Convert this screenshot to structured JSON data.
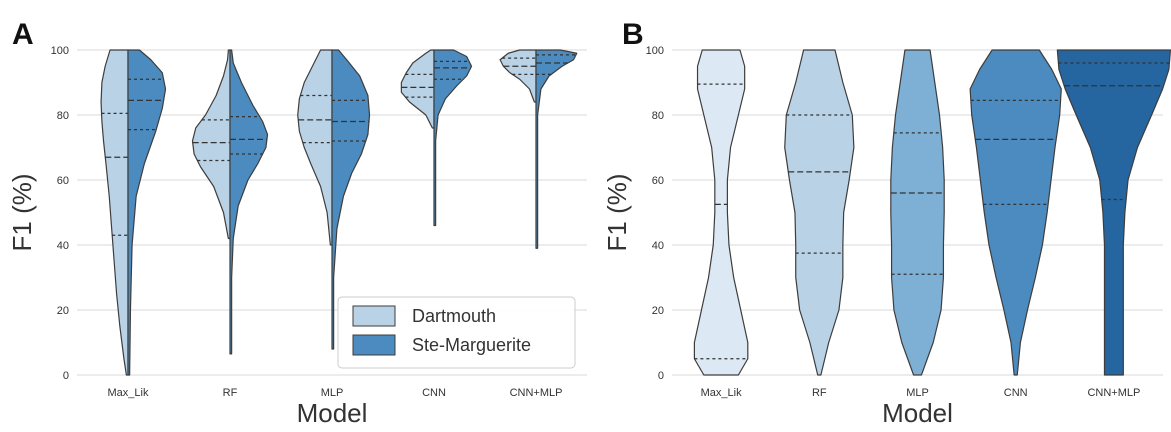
{
  "chart_data": [
    {
      "panel_label": "A",
      "type": "violin",
      "split": true,
      "categories": [
        "Max_Lik",
        "RF",
        "MLP",
        "CNN",
        "CNN+MLP"
      ],
      "xlabel": "Model",
      "ylabel": "F1 (%)",
      "ylim": [
        0,
        100
      ],
      "yticks": [
        0,
        20,
        40,
        60,
        80,
        100
      ],
      "grid": true,
      "legend": {
        "placement": "bottom-right",
        "entries": [
          "Dartmouth",
          "Ste-Marguerite"
        ]
      },
      "colors": {
        "Dartmouth": "#b9d2e6",
        "Ste-Marguerite": "#4b8bbf",
        "outline": "#3d3d3d",
        "grid": "#d9d9d9"
      },
      "series": [
        {
          "name": "Dartmouth",
          "side": "left",
          "violins": [
            {
              "category": "Max_Lik",
              "min": 0,
              "max": 100,
              "quartiles": [
                43,
                67,
                80.5
              ],
              "profile": [
                [
                  0,
                  0.02
                ],
                [
                  5,
                  0.05
                ],
                [
                  15,
                  0.1
                ],
                [
                  25,
                  0.14
                ],
                [
                  35,
                  0.17
                ],
                [
                  45,
                  0.2
                ],
                [
                  55,
                  0.23
                ],
                [
                  65,
                  0.27
                ],
                [
                  72,
                  0.3
                ],
                [
                  78,
                  0.32
                ],
                [
                  84,
                  0.33
                ],
                [
                  90,
                  0.32
                ],
                [
                  95,
                  0.28
                ],
                [
                  100,
                  0.22
                ]
              ]
            },
            {
              "category": "RF",
              "min": 42,
              "max": 100,
              "quartiles": [
                66,
                71.5,
                78.5
              ],
              "profile": [
                [
                  42,
                  0.02
                ],
                [
                  50,
                  0.08
                ],
                [
                  58,
                  0.2
                ],
                [
                  64,
                  0.36
                ],
                [
                  68,
                  0.44
                ],
                [
                  72,
                  0.46
                ],
                [
                  76,
                  0.42
                ],
                [
                  80,
                  0.3
                ],
                [
                  86,
                  0.17
                ],
                [
                  92,
                  0.08
                ],
                [
                  97,
                  0.03
                ],
                [
                  100,
                  0.02
                ]
              ]
            },
            {
              "category": "MLP",
              "min": 40,
              "max": 100,
              "quartiles": [
                71.5,
                78.5,
                86
              ],
              "profile": [
                [
                  40,
                  0.02
                ],
                [
                  50,
                  0.06
                ],
                [
                  58,
                  0.14
                ],
                [
                  65,
                  0.26
                ],
                [
                  70,
                  0.34
                ],
                [
                  75,
                  0.4
                ],
                [
                  80,
                  0.42
                ],
                [
                  85,
                  0.4
                ],
                [
                  90,
                  0.34
                ],
                [
                  95,
                  0.24
                ],
                [
                  100,
                  0.14
                ]
              ]
            },
            {
              "category": "CNN",
              "min": 76,
              "max": 100,
              "quartiles": [
                85.5,
                88.5,
                92.5
              ],
              "profile": [
                [
                  76,
                  0.02
                ],
                [
                  80,
                  0.1
                ],
                [
                  84,
                  0.3
                ],
                [
                  87,
                  0.4
                ],
                [
                  90,
                  0.4
                ],
                [
                  93,
                  0.34
                ],
                [
                  96,
                  0.26
                ],
                [
                  99,
                  0.1
                ],
                [
                  100,
                  0.04
                ]
              ]
            },
            {
              "category": "CNN+MLP",
              "min": 84,
              "max": 100,
              "quartiles": [
                92.5,
                95,
                97.5
              ],
              "profile": [
                [
                  84,
                  0.02
                ],
                [
                  88,
                  0.08
                ],
                [
                  91,
                  0.2
                ],
                [
                  93,
                  0.32
                ],
                [
                  95,
                  0.4
                ],
                [
                  97,
                  0.44
                ],
                [
                  99,
                  0.34
                ],
                [
                  100,
                  0.2
                ]
              ]
            }
          ]
        },
        {
          "name": "Ste-Marguerite",
          "side": "right",
          "violins": [
            {
              "category": "Max_Lik",
              "min": 0,
              "max": 100,
              "quartiles": [
                75.5,
                84.5,
                91
              ],
              "profile": [
                [
                  0,
                  0.02
                ],
                [
                  20,
                  0.03
                ],
                [
                  40,
                  0.05
                ],
                [
                  55,
                  0.1
                ],
                [
                  65,
                  0.2
                ],
                [
                  75,
                  0.34
                ],
                [
                  82,
                  0.42
                ],
                [
                  88,
                  0.46
                ],
                [
                  93,
                  0.42
                ],
                [
                  97,
                  0.28
                ],
                [
                  100,
                  0.14
                ]
              ]
            },
            {
              "category": "RF",
              "min": 6.5,
              "max": 100,
              "quartiles": [
                68,
                72.5,
                79.5
              ],
              "profile": [
                [
                  6.5,
                  0.02
                ],
                [
                  30,
                  0.02
                ],
                [
                  42,
                  0.04
                ],
                [
                  52,
                  0.1
                ],
                [
                  60,
                  0.22
                ],
                [
                  65,
                  0.34
                ],
                [
                  70,
                  0.44
                ],
                [
                  74,
                  0.46
                ],
                [
                  78,
                  0.4
                ],
                [
                  83,
                  0.28
                ],
                [
                  90,
                  0.14
                ],
                [
                  96,
                  0.04
                ],
                [
                  100,
                  0.02
                ]
              ]
            },
            {
              "category": "MLP",
              "min": 8,
              "max": 100,
              "quartiles": [
                72,
                78,
                84.5
              ],
              "profile": [
                [
                  8,
                  0.02
                ],
                [
                  30,
                  0.02
                ],
                [
                  45,
                  0.06
                ],
                [
                  55,
                  0.14
                ],
                [
                  62,
                  0.24
                ],
                [
                  68,
                  0.36
                ],
                [
                  74,
                  0.44
                ],
                [
                  80,
                  0.46
                ],
                [
                  86,
                  0.44
                ],
                [
                  92,
                  0.34
                ],
                [
                  97,
                  0.18
                ],
                [
                  100,
                  0.08
                ]
              ]
            },
            {
              "category": "CNN",
              "min": 46,
              "max": 100,
              "quartiles": [
                91,
                94.5,
                96.5
              ],
              "profile": [
                [
                  46,
                  0.02
                ],
                [
                  60,
                  0.02
                ],
                [
                  72,
                  0.02
                ],
                [
                  80,
                  0.05
                ],
                [
                  85,
                  0.14
                ],
                [
                  89,
                  0.28
                ],
                [
                  92,
                  0.4
                ],
                [
                  95,
                  0.46
                ],
                [
                  98,
                  0.4
                ],
                [
                  100,
                  0.24
                ]
              ]
            },
            {
              "category": "CNN+MLP",
              "min": 39,
              "max": 100,
              "quartiles": [
                92.5,
                96,
                98.5
              ],
              "profile": [
                [
                  39,
                  0.02
                ],
                [
                  60,
                  0.02
                ],
                [
                  80,
                  0.02
                ],
                [
                  88,
                  0.06
                ],
                [
                  92,
                  0.16
                ],
                [
                  95,
                  0.32
                ],
                [
                  97,
                  0.46
                ],
                [
                  99,
                  0.5
                ],
                [
                  100,
                  0.3
                ]
              ]
            }
          ]
        }
      ]
    },
    {
      "panel_label": "B",
      "type": "violin",
      "split": false,
      "categories": [
        "Max_Lik",
        "RF",
        "MLP",
        "CNN",
        "CNN+MLP"
      ],
      "xlabel": "Model",
      "ylabel": "F1 (%)",
      "ylim": [
        0,
        100
      ],
      "yticks": [
        0,
        20,
        40,
        60,
        80,
        100
      ],
      "grid": true,
      "colors": {
        "Max_Lik": "#dce9f4",
        "RF": "#b9d2e6",
        "MLP": "#7eb0d5",
        "CNN": "#4b8bbf",
        "CNN+MLP": "#2565a0",
        "outline": "#3d3d3d",
        "grid": "#d9d9d9"
      },
      "violins": [
        {
          "category": "Max_Lik",
          "min": 0,
          "max": 100,
          "quartiles": [
            5,
            52.5,
            89.5
          ],
          "profile": [
            [
              0,
              0.22
            ],
            [
              5,
              0.34
            ],
            [
              10,
              0.34
            ],
            [
              20,
              0.25
            ],
            [
              30,
              0.16
            ],
            [
              40,
              0.1
            ],
            [
              50,
              0.08
            ],
            [
              60,
              0.08
            ],
            [
              70,
              0.12
            ],
            [
              80,
              0.22
            ],
            [
              88,
              0.3
            ],
            [
              95,
              0.3
            ],
            [
              100,
              0.24
            ]
          ]
        },
        {
          "category": "RF",
          "min": 0,
          "max": 100,
          "quartiles": [
            37.5,
            62.5,
            80
          ],
          "profile": [
            [
              0,
              0.02
            ],
            [
              10,
              0.12
            ],
            [
              20,
              0.25
            ],
            [
              30,
              0.3
            ],
            [
              40,
              0.3
            ],
            [
              50,
              0.31
            ],
            [
              60,
              0.38
            ],
            [
              70,
              0.44
            ],
            [
              80,
              0.42
            ],
            [
              90,
              0.3
            ],
            [
              100,
              0.2
            ]
          ]
        },
        {
          "category": "MLP",
          "min": 0,
          "max": 100,
          "quartiles": [
            31,
            56,
            74.5
          ],
          "profile": [
            [
              0,
              0.05
            ],
            [
              10,
              0.2
            ],
            [
              20,
              0.3
            ],
            [
              30,
              0.33
            ],
            [
              40,
              0.33
            ],
            [
              50,
              0.34
            ],
            [
              60,
              0.34
            ],
            [
              70,
              0.32
            ],
            [
              80,
              0.28
            ],
            [
              90,
              0.22
            ],
            [
              100,
              0.16
            ]
          ]
        },
        {
          "category": "CNN",
          "min": 0,
          "max": 100,
          "quartiles": [
            52.5,
            72.5,
            84.5
          ],
          "profile": [
            [
              0,
              0.02
            ],
            [
              10,
              0.06
            ],
            [
              20,
              0.15
            ],
            [
              30,
              0.25
            ],
            [
              40,
              0.34
            ],
            [
              50,
              0.4
            ],
            [
              60,
              0.45
            ],
            [
              70,
              0.5
            ],
            [
              80,
              0.56
            ],
            [
              88,
              0.58
            ],
            [
              94,
              0.46
            ],
            [
              100,
              0.3
            ]
          ]
        },
        {
          "category": "CNN+MLP",
          "min": 0,
          "max": 100,
          "quartiles": [
            54,
            89,
            96
          ],
          "profile": [
            [
              0,
              0.12
            ],
            [
              20,
              0.12
            ],
            [
              40,
              0.12
            ],
            [
              50,
              0.14
            ],
            [
              60,
              0.18
            ],
            [
              70,
              0.3
            ],
            [
              80,
              0.48
            ],
            [
              88,
              0.62
            ],
            [
              94,
              0.7
            ],
            [
              100,
              0.72
            ]
          ]
        }
      ]
    }
  ]
}
